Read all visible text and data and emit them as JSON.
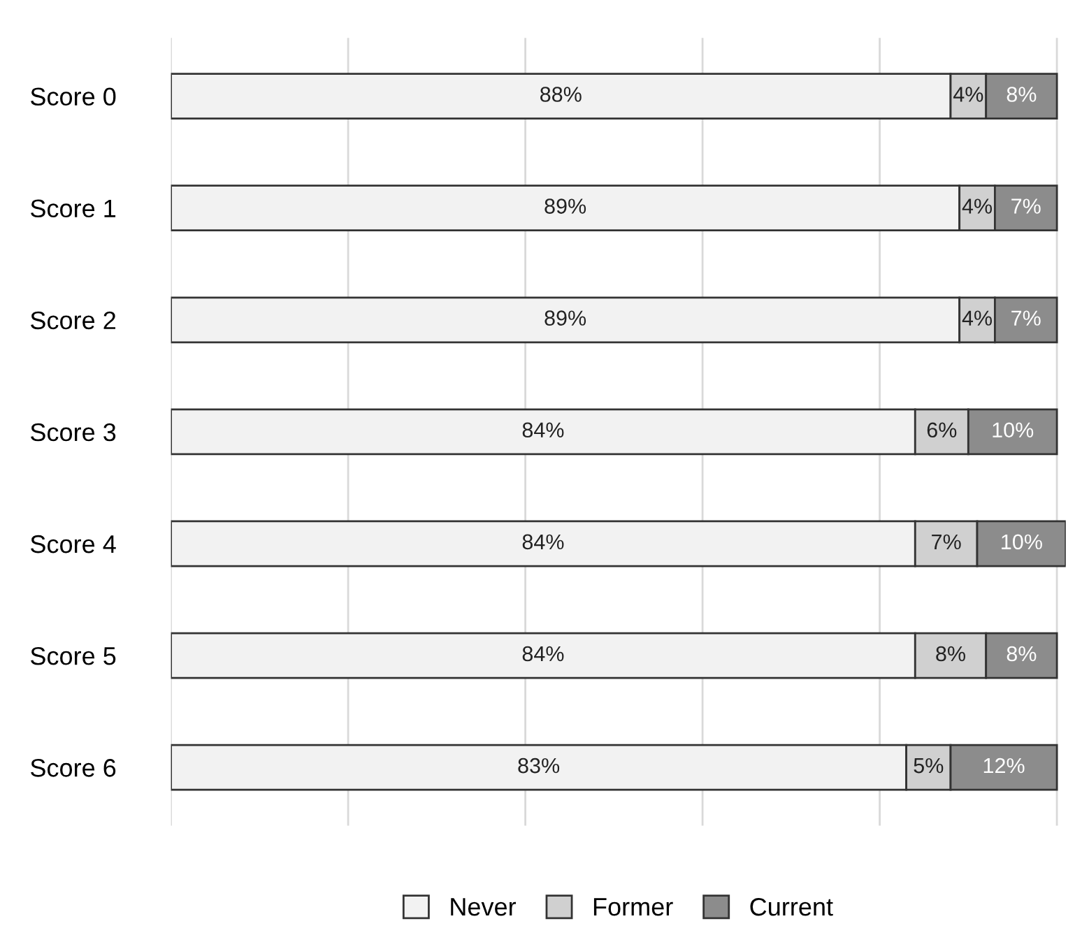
{
  "chart_data": {
    "type": "bar",
    "orientation": "horizontal",
    "stacked": true,
    "categories": [
      "Score 0",
      "Score 1",
      "Score 2",
      "Score 3",
      "Score 4",
      "Score 5",
      "Score 6"
    ],
    "series": [
      {
        "name": "Never",
        "color": "#f2f2f2",
        "values": [
          88,
          89,
          89,
          84,
          84,
          84,
          83
        ],
        "value_labels": [
          "88%",
          "89%",
          "89%",
          "84%",
          "84%",
          "84%",
          "83%"
        ]
      },
      {
        "name": "Former",
        "color": "#d0d0d0",
        "values": [
          4,
          4,
          4,
          6,
          7,
          8,
          5
        ],
        "value_labels": [
          "4%",
          "4%",
          "4%",
          "6%",
          "7%",
          "8%",
          "5%"
        ]
      },
      {
        "name": "Current",
        "color": "#8c8c8c",
        "values": [
          8,
          7,
          7,
          10,
          10,
          8,
          12
        ],
        "value_labels": [
          "8%",
          "7%",
          "7%",
          "10%",
          "10%",
          "8%",
          "12%"
        ]
      }
    ],
    "grid": "x",
    "legend": "bottom",
    "tick_labels": "y"
  }
}
